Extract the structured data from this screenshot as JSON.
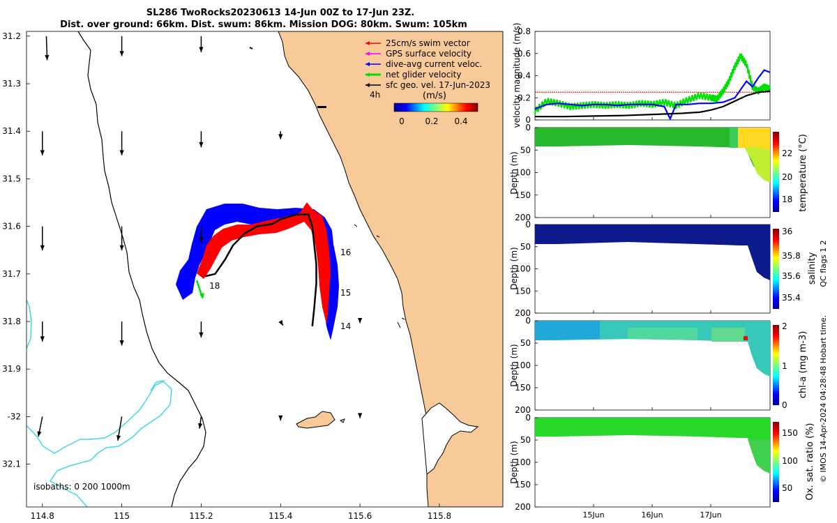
{
  "colors": {
    "land": "#f8c999",
    "isobath": "#40d8e0",
    "swim": "#ff0000",
    "gps": "#ff00ff",
    "dive_avg": "#0000ff",
    "net_glider": "#00e000",
    "sfc_geo": "#000000"
  },
  "chart_data": [
    {
      "type": "map",
      "title_line1": "SL286 TwoRocks20230613 14-Jun 00Z to 17-Jun 23Z.",
      "title_line2": "Dist. over ground: 66km. Dist. swum: 86km. Mission DOG: 80km. Swum: 105km",
      "xlim": [
        114.76,
        115.96
      ],
      "ylim": [
        -32.19,
        -31.19
      ],
      "x_ticks": [
        114.8,
        115,
        115.2,
        115.4,
        115.6,
        115.8
      ],
      "x_tick_labels": [
        "114.8",
        "115",
        "115.2",
        "115.4",
        "115.6",
        "115.8"
      ],
      "y_ticks": [
        -31.2,
        -31.3,
        -31.4,
        -31.5,
        -31.6,
        -31.7,
        -31.8,
        -31.9,
        -32.0,
        -32.1
      ],
      "y_tick_labels": [
        "31.2",
        "31.3",
        "31.4",
        "31.5",
        "31.6",
        "31.7",
        "31.8",
        "31.9",
        "-32",
        "32.1"
      ],
      "legend": [
        {
          "label": "25cm/s swim vector",
          "color_key": "swim"
        },
        {
          "label": "GPS surface velocity",
          "color_key": "gps"
        },
        {
          "label": "dive-avg current veloc.",
          "color_key": "dive_avg"
        },
        {
          "label": "net glider velocity",
          "color_key": "net_glider"
        },
        {
          "label": "sfc geo. vel. 17-Jun-2023",
          "color_key": "sfc_geo"
        }
      ],
      "scale_label": "4h",
      "colorbar": {
        "label": "(m/s)",
        "ticks": [
          "0",
          "0.2",
          "0.4"
        ],
        "range": [
          0,
          0.5
        ]
      },
      "isobaths_label": "isobaths: 0   200  1000m",
      "track_day_labels": [
        {
          "text": "14",
          "lon": 115.54,
          "lat": -31.81
        },
        {
          "text": "15",
          "lon": 115.54,
          "lat": -31.74
        },
        {
          "text": "16",
          "lon": 115.54,
          "lat": -31.655
        },
        {
          "text": "18",
          "lon": 115.21,
          "lat": -31.725
        }
      ],
      "track": [
        [
          115.48,
          -31.81
        ],
        [
          115.485,
          -31.77
        ],
        [
          115.49,
          -31.72
        ],
        [
          115.49,
          -31.68
        ],
        [
          115.485,
          -31.64
        ],
        [
          115.48,
          -31.6
        ],
        [
          115.47,
          -31.575
        ],
        [
          115.44,
          -31.575
        ],
        [
          115.4,
          -31.585
        ],
        [
          115.38,
          -31.595
        ],
        [
          115.34,
          -31.6
        ],
        [
          115.31,
          -31.615
        ],
        [
          115.28,
          -31.64
        ],
        [
          115.26,
          -31.67
        ],
        [
          115.235,
          -31.7
        ],
        [
          115.21,
          -31.705
        ]
      ],
      "vectors": [
        {
          "lon": 114.81,
          "lat": -31.2,
          "u": 0.01,
          "v": -0.3
        },
        {
          "lon": 115.0,
          "lat": -31.2,
          "u": 0.0,
          "v": -0.25
        },
        {
          "lon": 115.2,
          "lat": -31.2,
          "u": 0.0,
          "v": -0.2
        },
        {
          "lon": 114.8,
          "lat": -31.4,
          "u": 0.0,
          "v": -0.3
        },
        {
          "lon": 115.0,
          "lat": -31.4,
          "u": 0.0,
          "v": -0.3
        },
        {
          "lon": 115.2,
          "lat": -31.4,
          "u": 0.0,
          "v": -0.2
        },
        {
          "lon": 115.4,
          "lat": -31.4,
          "u": 0.0,
          "v": -0.1
        },
        {
          "lon": 114.8,
          "lat": -31.6,
          "u": 0.0,
          "v": -0.3
        },
        {
          "lon": 115.0,
          "lat": -31.6,
          "u": 0.0,
          "v": -0.3
        },
        {
          "lon": 115.2,
          "lat": -31.6,
          "u": 0.0,
          "v": -0.2
        },
        {
          "lon": 114.8,
          "lat": -31.8,
          "u": 0.0,
          "v": -0.25
        },
        {
          "lon": 115.0,
          "lat": -31.8,
          "u": 0.0,
          "v": -0.3
        },
        {
          "lon": 115.2,
          "lat": -31.8,
          "u": 0.0,
          "v": -0.2
        },
        {
          "lon": 115.4,
          "lat": -31.8,
          "u": 0.03,
          "v": -0.05
        },
        {
          "lon": 115.6,
          "lat": -31.8,
          "u": 0.0,
          "v": -0.02
        },
        {
          "lon": 114.8,
          "lat": -32.0,
          "u": -0.05,
          "v": -0.25
        },
        {
          "lon": 115.0,
          "lat": -32.0,
          "u": -0.05,
          "v": -0.3
        },
        {
          "lon": 115.2,
          "lat": -32.0,
          "u": -0.02,
          "v": -0.15
        },
        {
          "lon": 115.4,
          "lat": -32.0,
          "u": 0.0,
          "v": -0.05
        },
        {
          "lon": 115.6,
          "lat": -32.0,
          "u": 0.0,
          "v": -0.02
        }
      ]
    },
    {
      "type": "line",
      "ylabel": "velocity magnitude (m/s)",
      "ylim": [
        0,
        0.8
      ],
      "y_ticks": [
        0,
        0.2,
        0.4,
        0.6,
        0.8
      ],
      "y_tick_labels": [
        "0",
        "0.2",
        "0.4",
        "0.6",
        "0.8"
      ],
      "xlim": [
        0,
        4
      ],
      "series": [
        {
          "name": "swim 25cm/s",
          "color_key": "swim",
          "x": [
            0,
            4
          ],
          "y": [
            0.25,
            0.25
          ]
        },
        {
          "name": "net glider velocity",
          "color_key": "net_glider",
          "x": [
            0,
            0.2,
            0.4,
            0.6,
            0.8,
            1.0,
            1.2,
            1.4,
            1.6,
            1.8,
            2.0,
            2.2,
            2.4,
            2.6,
            2.8,
            3.0,
            3.1,
            3.2,
            3.3,
            3.4,
            3.5,
            3.6,
            3.7,
            3.8,
            3.9,
            4.0
          ],
          "y": [
            0.08,
            0.17,
            0.15,
            0.12,
            0.13,
            0.14,
            0.13,
            0.14,
            0.13,
            0.15,
            0.14,
            0.16,
            0.13,
            0.18,
            0.22,
            0.2,
            0.19,
            0.26,
            0.35,
            0.48,
            0.58,
            0.5,
            0.3,
            0.26,
            0.3,
            0.28
          ]
        },
        {
          "name": "dive-avg current veloc.",
          "color_key": "dive_avg",
          "x": [
            0,
            0.2,
            0.4,
            0.6,
            0.8,
            1.0,
            1.2,
            1.4,
            1.6,
            1.8,
            2.0,
            2.2,
            2.3,
            2.4,
            2.6,
            2.8,
            3.0,
            3.2,
            3.4,
            3.6,
            3.7,
            3.8,
            3.9,
            4.0
          ],
          "y": [
            0.1,
            0.14,
            0.15,
            0.14,
            0.13,
            0.14,
            0.14,
            0.13,
            0.14,
            0.14,
            0.14,
            0.12,
            0.01,
            0.14,
            0.14,
            0.15,
            0.15,
            0.16,
            0.2,
            0.35,
            0.3,
            0.38,
            0.45,
            0.43
          ]
        },
        {
          "name": "sfc geo. vel.",
          "color_key": "sfc_geo",
          "x": [
            0,
            0.5,
            1.0,
            1.5,
            2.0,
            2.5,
            2.8,
            3.0,
            3.2,
            3.4,
            3.6,
            3.8,
            4.0
          ],
          "y": [
            0.03,
            0.03,
            0.035,
            0.04,
            0.05,
            0.06,
            0.07,
            0.09,
            0.12,
            0.17,
            0.22,
            0.25,
            0.26
          ]
        }
      ]
    },
    {
      "type": "heatmap",
      "ylabel": "Depth (m)",
      "colorbar_label": "temperature (°C)",
      "cb_ticks": [
        "22",
        "20",
        "18"
      ],
      "ylim": [
        200,
        0
      ],
      "y_ticks": [
        "0",
        "50",
        "100",
        "150",
        "200"
      ]
    },
    {
      "type": "heatmap",
      "ylabel": "Depth (m)",
      "colorbar_label": "salinity",
      "cb_ticks": [
        "36",
        "35.8",
        "35.6",
        "35.4"
      ],
      "ylim": [
        200,
        0
      ],
      "y_ticks": [
        "0",
        "50",
        "100",
        "150",
        "200"
      ]
    },
    {
      "type": "heatmap",
      "ylabel": "Depth (m)",
      "colorbar_label": "chl-a (mg m-3)",
      "cb_ticks": [
        "2",
        "1",
        "0"
      ],
      "ylim": [
        200,
        0
      ],
      "y_ticks": [
        "0",
        "50",
        "100",
        "150",
        "200"
      ]
    },
    {
      "type": "heatmap",
      "ylabel": "Depth (m)",
      "colorbar_label": "Ox. sat. ratio (%)",
      "cb_ticks": [
        "150",
        "100",
        "50"
      ],
      "ylim": [
        200,
        0
      ],
      "y_ticks": [
        "0",
        "50",
        "100",
        "150",
        "200"
      ],
      "x_ticks": [
        "15Jun",
        "16Jun",
        "17Jun"
      ]
    }
  ],
  "side_note": "QC flags 1  2",
  "credit": "© IMOS 14-Apr-2024 04:28:48 Hobart time."
}
